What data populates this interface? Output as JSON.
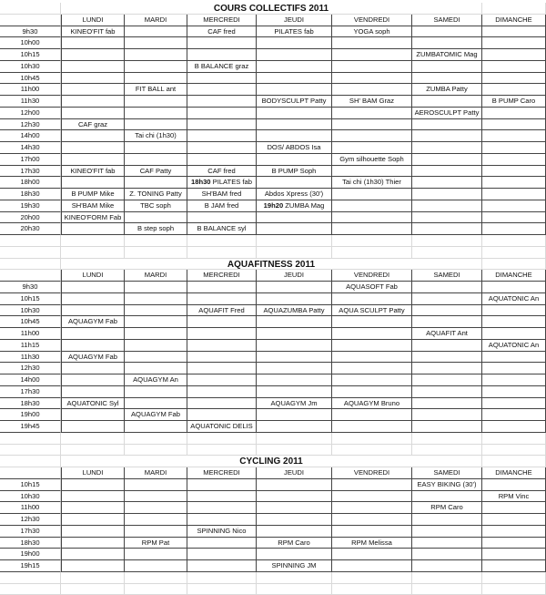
{
  "sections": [
    {
      "title": "COURS COLLECTIFS 2011",
      "days": [
        "LUNDI",
        "MARDI",
        "MERCREDI",
        "JEUDI",
        "VENDREDI",
        "SAMEDI",
        "DIMANCHE"
      ],
      "rows": [
        {
          "time": "9h30",
          "cells": [
            "KINEO'FIT fab",
            "",
            "CAF fred",
            "PILATES fab",
            "YOGA soph",
            "",
            ""
          ]
        },
        {
          "time": "10h00",
          "cells": [
            "",
            "",
            "",
            "",
            "",
            "",
            ""
          ]
        },
        {
          "time": "10h15",
          "cells": [
            "",
            "",
            "",
            "",
            "",
            "ZUMBATOMIC Mag",
            ""
          ]
        },
        {
          "time": "10h30",
          "cells": [
            "",
            "",
            "B BALANCE graz",
            "",
            "",
            "",
            ""
          ]
        },
        {
          "time": "10h45",
          "cells": [
            "",
            "",
            "",
            "",
            "",
            "",
            ""
          ]
        },
        {
          "time": "11h00",
          "cells": [
            "",
            "FIT BALL ant",
            "",
            "",
            "",
            "ZUMBA Patty",
            ""
          ]
        },
        {
          "time": "11h30",
          "cells": [
            "",
            "",
            "",
            "BODYSCULPT Patty",
            "SH' BAM  Graz",
            "",
            "B PUMP Caro"
          ]
        },
        {
          "time": "12h00",
          "cells": [
            "",
            "",
            "",
            "",
            "",
            "AEROSCULPT Patty",
            ""
          ]
        },
        {
          "time": "12h30",
          "cells": [
            "CAF graz",
            "",
            "",
            "",
            "",
            "",
            ""
          ]
        },
        {
          "time": "14h00",
          "cells": [
            "",
            "Tai chi (1h30)",
            "",
            "",
            "",
            "",
            ""
          ]
        },
        {
          "time": "14h30",
          "cells": [
            "",
            "",
            "",
            "DOS/ ABDOS Isa",
            "",
            "",
            ""
          ]
        },
        {
          "time": "17h00",
          "cells": [
            "",
            "",
            "",
            "",
            "Gym silhouette Soph",
            "",
            ""
          ]
        },
        {
          "time": "17h30",
          "cells": [
            "KINEO'FIT fab",
            "CAF Patty",
            "CAF fred",
            "B PUMP Soph",
            "",
            "",
            ""
          ]
        },
        {
          "time": "18h00",
          "cells": [
            "",
            "",
            "18h30 PILATES fab",
            "",
            "Tai chi (1h30) Thier",
            "",
            ""
          ]
        },
        {
          "time": "18h30",
          "cells": [
            "B PUMP Mike",
            "Z. TONING Patty",
            "SH'BAM fred",
            "Abdos Xpress (30')",
            "",
            "",
            ""
          ]
        },
        {
          "time": "19h30",
          "cells": [
            "SH'BAM Mike",
            "TBC soph",
            "B JAM fred",
            "19h20 ZUMBA Mag",
            "",
            "",
            ""
          ]
        },
        {
          "time": "20h00",
          "cells": [
            "KINEO'FORM Fab",
            "",
            "",
            "",
            "",
            "",
            ""
          ]
        },
        {
          "time": "20h30",
          "cells": [
            "",
            "B step soph",
            "B BALANCE syl",
            "",
            "",
            "",
            ""
          ]
        }
      ]
    },
    {
      "title": "AQUAFITNESS 2011",
      "days": [
        "LUNDI",
        "MARDI",
        "MERCREDI",
        "JEUDI",
        "VENDREDI",
        "SAMEDI",
        "DIMANCHE"
      ],
      "rows": [
        {
          "time": "9h30",
          "cells": [
            "",
            "",
            "",
            "",
            "AQUASOFT Fab",
            "",
            ""
          ]
        },
        {
          "time": "10h15",
          "cells": [
            "",
            "",
            "",
            "",
            "",
            "",
            "AQUATONIC An"
          ]
        },
        {
          "time": "10h30",
          "cells": [
            "",
            "",
            "AQUAFIT Fred",
            "AQUAZUMBA Patty",
            "AQUA SCULPT Patty",
            "",
            ""
          ]
        },
        {
          "time": "10h45",
          "cells": [
            "AQUAGYM Fab",
            "",
            "",
            "",
            "",
            "",
            ""
          ]
        },
        {
          "time": "11h00",
          "cells": [
            "",
            "",
            "",
            "",
            "",
            "AQUAFIT Ant",
            ""
          ]
        },
        {
          "time": "11h15",
          "cells": [
            "",
            "",
            "",
            "",
            "",
            "",
            "AQUATONIC An"
          ]
        },
        {
          "time": "11h30",
          "cells": [
            "AQUAGYM Fab",
            "",
            "",
            "",
            "",
            "",
            ""
          ]
        },
        {
          "time": "12h30",
          "cells": [
            "",
            "",
            "",
            "",
            "",
            "",
            ""
          ]
        },
        {
          "time": "14h00",
          "cells": [
            "",
            "AQUAGYM An",
            "",
            "",
            "",
            "",
            ""
          ]
        },
        {
          "time": "17h30",
          "cells": [
            "",
            "",
            "",
            "",
            "",
            "",
            ""
          ]
        },
        {
          "time": "18h30",
          "cells": [
            "AQUATONIC Syl",
            "",
            "",
            "AQUAGYM Jm",
            "AQUAGYM  Bruno",
            "",
            ""
          ]
        },
        {
          "time": "19h00",
          "cells": [
            "",
            "AQUAGYM Fab",
            "",
            "",
            "",
            "",
            ""
          ]
        },
        {
          "time": "19h45",
          "cells": [
            "",
            "",
            "AQUATONIC DELIS",
            "",
            "",
            "",
            ""
          ]
        }
      ]
    },
    {
      "title": "CYCLING 2011",
      "days": [
        "LUNDI",
        "MARDI",
        "MERCREDI",
        "JEUDI",
        "VENDREDI",
        "SAMEDI",
        "DIMANCHE"
      ],
      "rows": [
        {
          "time": "10h15",
          "cells": [
            "",
            "",
            "",
            "",
            "",
            "EASY BIKING (30')",
            ""
          ]
        },
        {
          "time": "10h30",
          "cells": [
            "",
            "",
            "",
            "",
            "",
            "",
            "RPM Vinc"
          ]
        },
        {
          "time": "11h00",
          "cells": [
            "",
            "",
            "",
            "",
            "",
            "RPM Caro",
            ""
          ]
        },
        {
          "time": "12h30",
          "cells": [
            "",
            "",
            "",
            "",
            "",
            "",
            ""
          ]
        },
        {
          "time": "17h30",
          "cells": [
            "",
            "",
            "SPINNING Nico",
            "",
            "",
            "",
            ""
          ]
        },
        {
          "time": "18h30",
          "cells": [
            "",
            "RPM Pat",
            "",
            "RPM Caro",
            "RPM Melissa",
            "",
            ""
          ]
        },
        {
          "time": "19h00",
          "cells": [
            "",
            "",
            "",
            "",
            "",
            "",
            ""
          ]
        },
        {
          "time": "19h15",
          "cells": [
            "",
            "",
            "",
            "SPINNING JM",
            "",
            "",
            ""
          ]
        }
      ]
    }
  ]
}
